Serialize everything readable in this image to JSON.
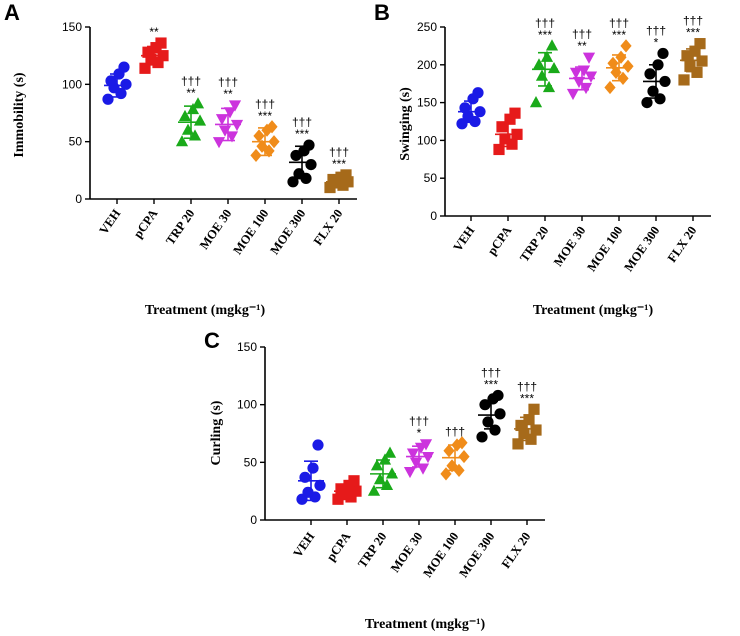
{
  "chart_data": [
    {
      "panel": "A",
      "type": "scatter",
      "ylabel": "Immobility (s)",
      "xlabel": "Treatment (mgkg⁻¹)",
      "ylim": [
        0,
        150
      ],
      "yticks": [
        "0",
        "50",
        "100",
        "150"
      ],
      "categories": [
        "VEH",
        "pCPA",
        "TRP 20",
        "MOE 30",
        "MOE 100",
        "MOE 300",
        "FLX 20"
      ],
      "series": [
        {
          "name": "VEH",
          "marker": "circle",
          "color": "#1a1ae6",
          "values": [
            87,
            92,
            97,
            100,
            103,
            109,
            115
          ],
          "mean": 99,
          "sd": 10,
          "stars": "",
          "daggers": ""
        },
        {
          "name": "pCPA",
          "marker": "square",
          "color": "#e61a1a",
          "values": [
            114,
            119,
            122,
            125,
            128,
            132,
            136
          ],
          "mean": 125,
          "sd": 8,
          "stars": "**",
          "daggers": ""
        },
        {
          "name": "TRP 20",
          "marker": "triangle-up",
          "color": "#1aaa1a",
          "values": [
            50,
            55,
            60,
            68,
            72,
            78,
            83
          ],
          "mean": 67,
          "sd": 14,
          "stars": "**",
          "daggers": "†††"
        },
        {
          "name": "MOE 30",
          "marker": "triangle-down",
          "color": "#cc33dd",
          "values": [
            50,
            55,
            60,
            65,
            70,
            76,
            82
          ],
          "mean": 65,
          "sd": 14,
          "stars": "**",
          "daggers": "†††"
        },
        {
          "name": "MOE 100",
          "marker": "diamond",
          "color": "#f08c1a",
          "values": [
            38,
            42,
            46,
            50,
            55,
            60,
            63
          ],
          "mean": 50,
          "sd": 12,
          "stars": "***",
          "daggers": "†††"
        },
        {
          "name": "MOE 300",
          "marker": "circle",
          "color": "#000000",
          "values": [
            15,
            18,
            22,
            30,
            38,
            42,
            47
          ],
          "mean": 32,
          "sd": 14,
          "stars": "***",
          "daggers": "†††"
        },
        {
          "name": "FLX 20",
          "marker": "square",
          "color": "#a66a1a",
          "values": [
            10,
            12,
            14,
            15,
            17,
            19,
            21
          ],
          "mean": 15,
          "sd": 4,
          "stars": "***",
          "daggers": "†††"
        }
      ]
    },
    {
      "panel": "B",
      "type": "scatter",
      "ylabel": "Swinging (s)",
      "xlabel": "Treatment (mgkg⁻¹)",
      "ylim": [
        0,
        250
      ],
      "yticks": [
        "0",
        "50",
        "100",
        "150",
        "200",
        "250"
      ],
      "categories": [
        "VEH",
        "pCPA",
        "TRP 20",
        "MOE 30",
        "MOE 100",
        "MOE 300",
        "FLX 20"
      ],
      "series": [
        {
          "name": "VEH",
          "marker": "circle",
          "color": "#1a1ae6",
          "values": [
            122,
            125,
            132,
            138,
            143,
            155,
            163
          ],
          "mean": 138,
          "sd": 14,
          "stars": "",
          "daggers": ""
        },
        {
          "name": "pCPA",
          "marker": "square",
          "color": "#e61a1a",
          "values": [
            88,
            95,
            102,
            108,
            118,
            128,
            136
          ],
          "mean": 108,
          "sd": 16,
          "stars": "",
          "daggers": ""
        },
        {
          "name": "TRP 20",
          "marker": "triangle-up",
          "color": "#1aaa1a",
          "values": [
            150,
            170,
            185,
            195,
            200,
            210,
            225
          ],
          "mean": 194,
          "sd": 22,
          "stars": "***",
          "daggers": "†††"
        },
        {
          "name": "MOE 30",
          "marker": "triangle-down",
          "color": "#cc33dd",
          "values": [
            162,
            170,
            178,
            185,
            190,
            193,
            210
          ],
          "mean": 182,
          "sd": 15,
          "stars": "**",
          "daggers": "†††"
        },
        {
          "name": "MOE 100",
          "marker": "diamond",
          "color": "#f08c1a",
          "values": [
            170,
            182,
            190,
            198,
            202,
            210,
            225
          ],
          "mean": 196,
          "sd": 17,
          "stars": "***",
          "daggers": "†††"
        },
        {
          "name": "MOE 300",
          "marker": "circle",
          "color": "#000000",
          "values": [
            150,
            155,
            165,
            178,
            188,
            200,
            215
          ],
          "mean": 178,
          "sd": 22,
          "stars": "*",
          "daggers": "†††"
        },
        {
          "name": "FLX 20",
          "marker": "square",
          "color": "#a66a1a",
          "values": [
            180,
            190,
            198,
            205,
            212,
            218,
            228
          ],
          "mean": 206,
          "sd": 15,
          "stars": "***",
          "daggers": "†††"
        }
      ]
    },
    {
      "panel": "C",
      "type": "scatter",
      "ylabel": "Curling (s)",
      "xlabel": "Treatment (mgkg⁻¹)",
      "ylim": [
        0,
        150
      ],
      "yticks": [
        "0",
        "50",
        "100",
        "150"
      ],
      "categories": [
        "VEH",
        "pCPA",
        "TRP 20",
        "MOE 30",
        "MOE 100",
        "MOE 300",
        "FLX 20"
      ],
      "series": [
        {
          "name": "VEH",
          "marker": "circle",
          "color": "#1a1ae6",
          "values": [
            18,
            20,
            24,
            30,
            37,
            45,
            65
          ],
          "mean": 34,
          "sd": 17,
          "stars": "",
          "daggers": ""
        },
        {
          "name": "pCPA",
          "marker": "square",
          "color": "#e61a1a",
          "values": [
            18,
            20,
            22,
            25,
            27,
            30,
            34
          ],
          "mean": 25,
          "sd": 6,
          "stars": "",
          "daggers": ""
        },
        {
          "name": "TRP 20",
          "marker": "triangle-up",
          "color": "#1aaa1a",
          "values": [
            25,
            30,
            35,
            40,
            47,
            52,
            58
          ],
          "mean": 40,
          "sd": 12,
          "stars": "",
          "daggers": ""
        },
        {
          "name": "MOE 30",
          "marker": "triangle-down",
          "color": "#cc33dd",
          "values": [
            42,
            45,
            50,
            55,
            58,
            63,
            66
          ],
          "mean": 55,
          "sd": 9,
          "stars": "*",
          "daggers": "†††"
        },
        {
          "name": "MOE 100",
          "marker": "diamond",
          "color": "#f08c1a",
          "values": [
            40,
            43,
            47,
            55,
            60,
            65,
            67
          ],
          "mean": 54,
          "sd": 11,
          "stars": "",
          "daggers": "†††"
        },
        {
          "name": "MOE 300",
          "marker": "circle",
          "color": "#000000",
          "values": [
            72,
            78,
            85,
            92,
            100,
            105,
            108
          ],
          "mean": 91,
          "sd": 12,
          "stars": "***",
          "daggers": "†††"
        },
        {
          "name": "FLX 20",
          "marker": "square",
          "color": "#a66a1a",
          "values": [
            66,
            70,
            75,
            78,
            82,
            87,
            96
          ],
          "mean": 79,
          "sd": 10,
          "stars": "***",
          "daggers": "†††"
        }
      ]
    }
  ]
}
